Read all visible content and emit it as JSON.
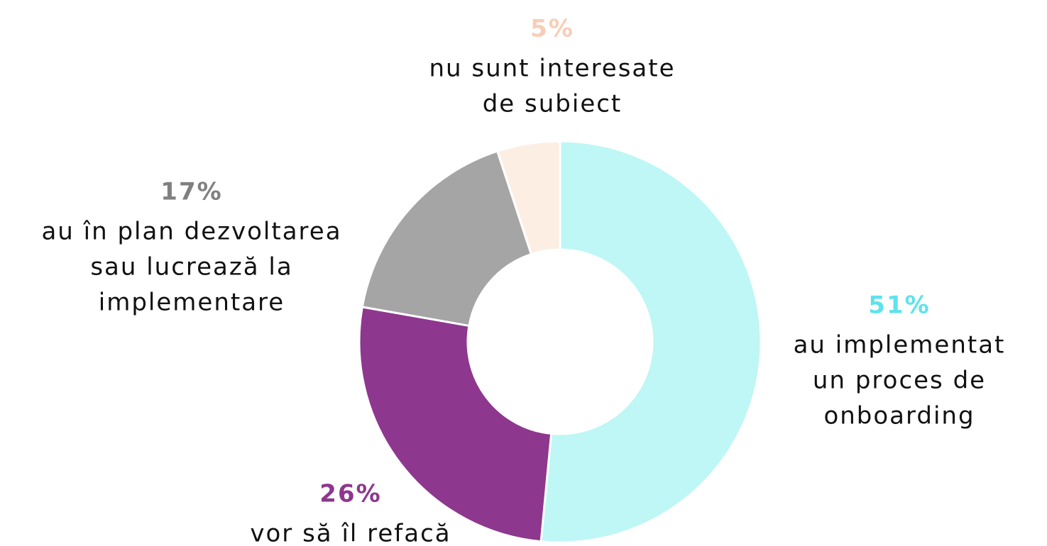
{
  "chart_data": {
    "type": "donut",
    "categories": [
      [
        "au implementat",
        "un proces de",
        "onboarding"
      ],
      [
        "vor să îl refacă"
      ],
      [
        "au în plan dezvoltarea",
        "sau lucrează la",
        "implementare"
      ],
      [
        "nu sunt interesate",
        "de subiect"
      ]
    ],
    "values": [
      51,
      26,
      17,
      5
    ],
    "value_labels": [
      "51%",
      "26%",
      "17%",
      "5%"
    ],
    "colors": [
      "#bef7f5",
      "#8e378e",
      "#a5a5a5",
      "#fdeee4"
    ],
    "label_colors": [
      "#5ee3ec",
      "#8e378e",
      "#808080",
      "#f8cdb8"
    ]
  }
}
